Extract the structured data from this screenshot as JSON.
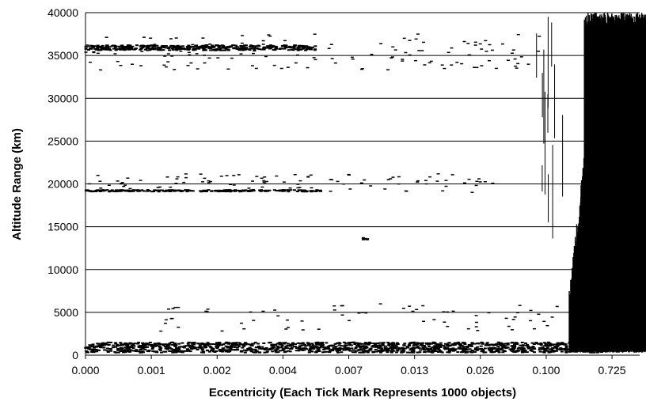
{
  "chart_data": {
    "type": "scatter",
    "title": "",
    "xlabel": "Eccentricity (Each Tick Mark Represents 1000 objects)",
    "ylabel": "Altitude Range (km)",
    "ylim": [
      0,
      40000
    ],
    "yticks": [
      0,
      5000,
      10000,
      15000,
      20000,
      25000,
      30000,
      35000,
      40000
    ],
    "ytick_labels": [
      "0",
      "5000",
      "10000",
      "15000",
      "20000",
      "25000",
      "30000",
      "35000",
      "40000"
    ],
    "xtick_labels": [
      "0.000",
      "0.001",
      "0.002",
      "0.004",
      "0.007",
      "0.013",
      "0.026",
      "0.100",
      "0.725"
    ],
    "x_scale": "object rank (ordinal, 1000 objects per tick)",
    "grid": "horizontal",
    "legend": "none",
    "mark_color": "#000000",
    "series": [
      {
        "x_tick_start": 0.0,
        "x_tick_end": 7.9,
        "altitude_low": 300,
        "altitude_high": 1500
      },
      {
        "x_tick_start": 0.0,
        "x_tick_end": 3.5,
        "altitude_low": 35600,
        "altitude_high": 36200
      },
      {
        "x_tick_start": 0.0,
        "x_tick_end": 3.6,
        "altitude_low": 19100,
        "altitude_high": 19300
      },
      {
        "x_tick_start": 4.2,
        "x_tick_end": 4.3,
        "altitude_low": 13500,
        "altitude_high": 13700
      },
      {
        "x_tick_start": 7.35,
        "x_tick_end": 9.25,
        "altitude_low": 300,
        "altitude_high": 40000
      }
    ]
  }
}
